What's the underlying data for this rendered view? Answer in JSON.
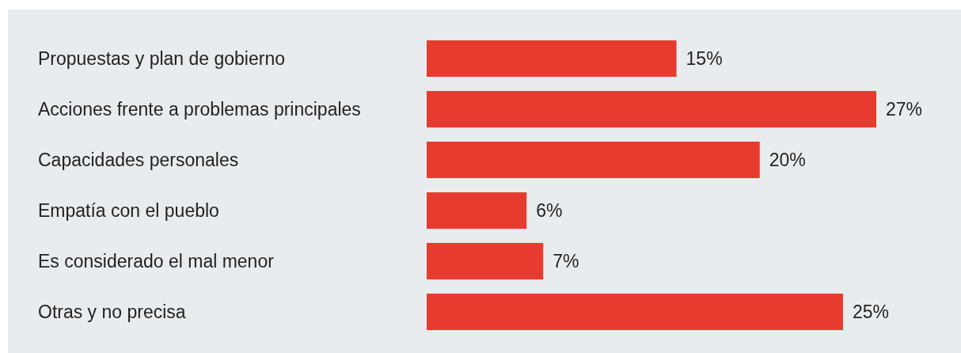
{
  "chart_data": {
    "type": "bar",
    "orientation": "horizontal",
    "categories": [
      "Propuestas y plan de gobierno",
      "Acciones frente a problemas principales",
      "Capacidades personales",
      "Empatía con el pueblo",
      "Es considerado el mal menor",
      "Otras y no precisa"
    ],
    "values": [
      15,
      27,
      20,
      6,
      7,
      25
    ],
    "value_labels": [
      "15%",
      "27%",
      "20%",
      "6%",
      "7%",
      "25%"
    ],
    "color": "#e63b2e"
  }
}
